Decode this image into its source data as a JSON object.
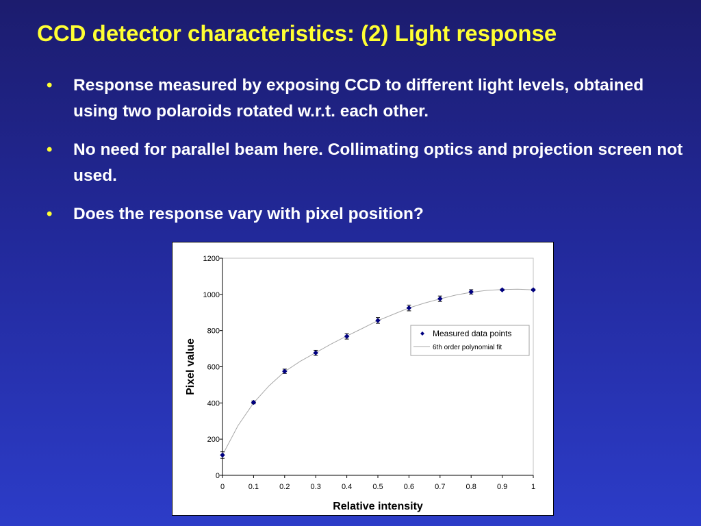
{
  "slide": {
    "title": "CCD detector characteristics: (2) Light response",
    "bullets": [
      "Response measured by exposing CCD to different light levels, obtained using two polaroids rotated w.r.t. each other.",
      "No need for parallel beam here. Collimating optics and projection screen not used.",
      "Does the response vary with pixel position?"
    ],
    "bullet_symbol": "•"
  },
  "colors": {
    "background_top": "#1c1c6e",
    "background_bottom": "#2c3cc8",
    "title": "#ffff33",
    "bullet_text": "#ffffff",
    "marker": "#000080",
    "fit_line": "#a8a8a8"
  },
  "chart_data": {
    "type": "scatter",
    "xlabel": "Relative intensity",
    "ylabel": "Pixel value",
    "xlim": [
      0,
      1
    ],
    "ylim": [
      0,
      1200
    ],
    "x_ticks": [
      "0",
      "0.1",
      "0.2",
      "0.3",
      "0.4",
      "0.5",
      "0.6",
      "0.7",
      "0.8",
      "0.9",
      "1"
    ],
    "y_ticks": [
      "0",
      "200",
      "400",
      "600",
      "800",
      "1000",
      "1200"
    ],
    "grid": false,
    "legend_position": "right",
    "series": [
      {
        "name": "Measured data points",
        "marker": "diamond",
        "x": [
          0,
          0.1,
          0.2,
          0.3,
          0.4,
          0.5,
          0.6,
          0.7,
          0.8,
          0.9,
          1.0
        ],
        "y": [
          112,
          403,
          575,
          677,
          768,
          856,
          925,
          976,
          1014,
          1025,
          1025
        ],
        "error": [
          18,
          8,
          12,
          14,
          15,
          16,
          16,
          15,
          12,
          4,
          4
        ]
      },
      {
        "name": "6th order polynomial fit",
        "style": "line",
        "x": [
          0,
          0.05,
          0.1,
          0.15,
          0.2,
          0.25,
          0.3,
          0.35,
          0.4,
          0.45,
          0.5,
          0.55,
          0.6,
          0.65,
          0.7,
          0.75,
          0.8,
          0.85,
          0.9,
          0.95,
          1.0
        ],
        "y": [
          112,
          275,
          400,
          495,
          573,
          630,
          678,
          726,
          770,
          812,
          855,
          890,
          925,
          952,
          975,
          996,
          1012,
          1022,
          1027,
          1029,
          1025
        ]
      }
    ]
  }
}
